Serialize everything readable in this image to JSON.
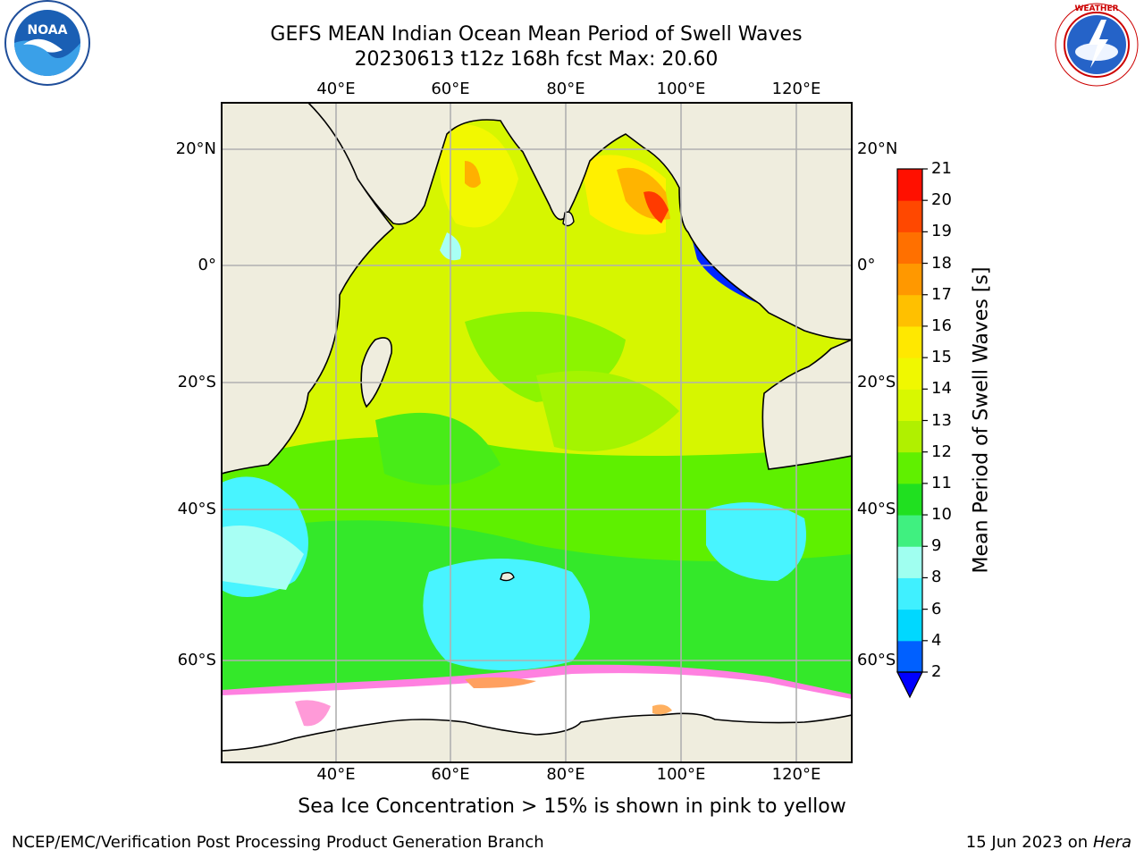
{
  "header": {
    "title_line1": "GEFS MEAN Indian Ocean Mean Period of Swell Waves",
    "title_line2": "20230613 t12z 168h fcst   Max: 20.60"
  },
  "logos": {
    "noaa_text": "NOAA",
    "noaa_ring_text": "NATIONAL OCEANIC AND ATMOSPHERIC ADMINISTRATION · U.S. DEPARTMENT OF COMMERCE",
    "nws_ring_text": "NATIONAL WEATHER SERVICE"
  },
  "map": {
    "lon_ticks": [
      "40°E",
      "60°E",
      "80°E",
      "100°E",
      "120°E"
    ],
    "lat_ticks_left": [
      "20°N",
      "0°",
      "20°S",
      "40°S",
      "60°S"
    ],
    "lat_ticks_right": [
      "20°N",
      "0°",
      "20°S",
      "40°S",
      "60°S"
    ],
    "extent": {
      "lon_min": 20,
      "lon_max": 129,
      "lat_min": -72,
      "lat_max": 28
    }
  },
  "colorbar": {
    "label": "Mean Period of Swell Waves [s]",
    "ticks": [
      "2",
      "4",
      "6",
      "8",
      "9",
      "10",
      "11",
      "12",
      "13",
      "14",
      "15",
      "16",
      "17",
      "18",
      "19",
      "20",
      "21"
    ],
    "colors": [
      "#0060ff",
      "#00d8ff",
      "#40f0ff",
      "#a0fff0",
      "#40f080",
      "#20e020",
      "#60f000",
      "#b0f000",
      "#d8f800",
      "#f0f800",
      "#ffe800",
      "#ffc000",
      "#ff9800",
      "#ff7000",
      "#ff4800",
      "#ff1000"
    ],
    "extend_color": "#0000ff"
  },
  "colors": {
    "land": "#efedde",
    "sea_ice": "#ff80e0",
    "grid": "#b0b0b0"
  },
  "note": "Sea Ice Concentration > 15% is shown in pink to yellow",
  "footer": {
    "left": "NCEP/EMC/Verification Post Processing Product Generation Branch",
    "right_prefix": "15 Jun 2023 on",
    "right_machine": "Hera"
  }
}
